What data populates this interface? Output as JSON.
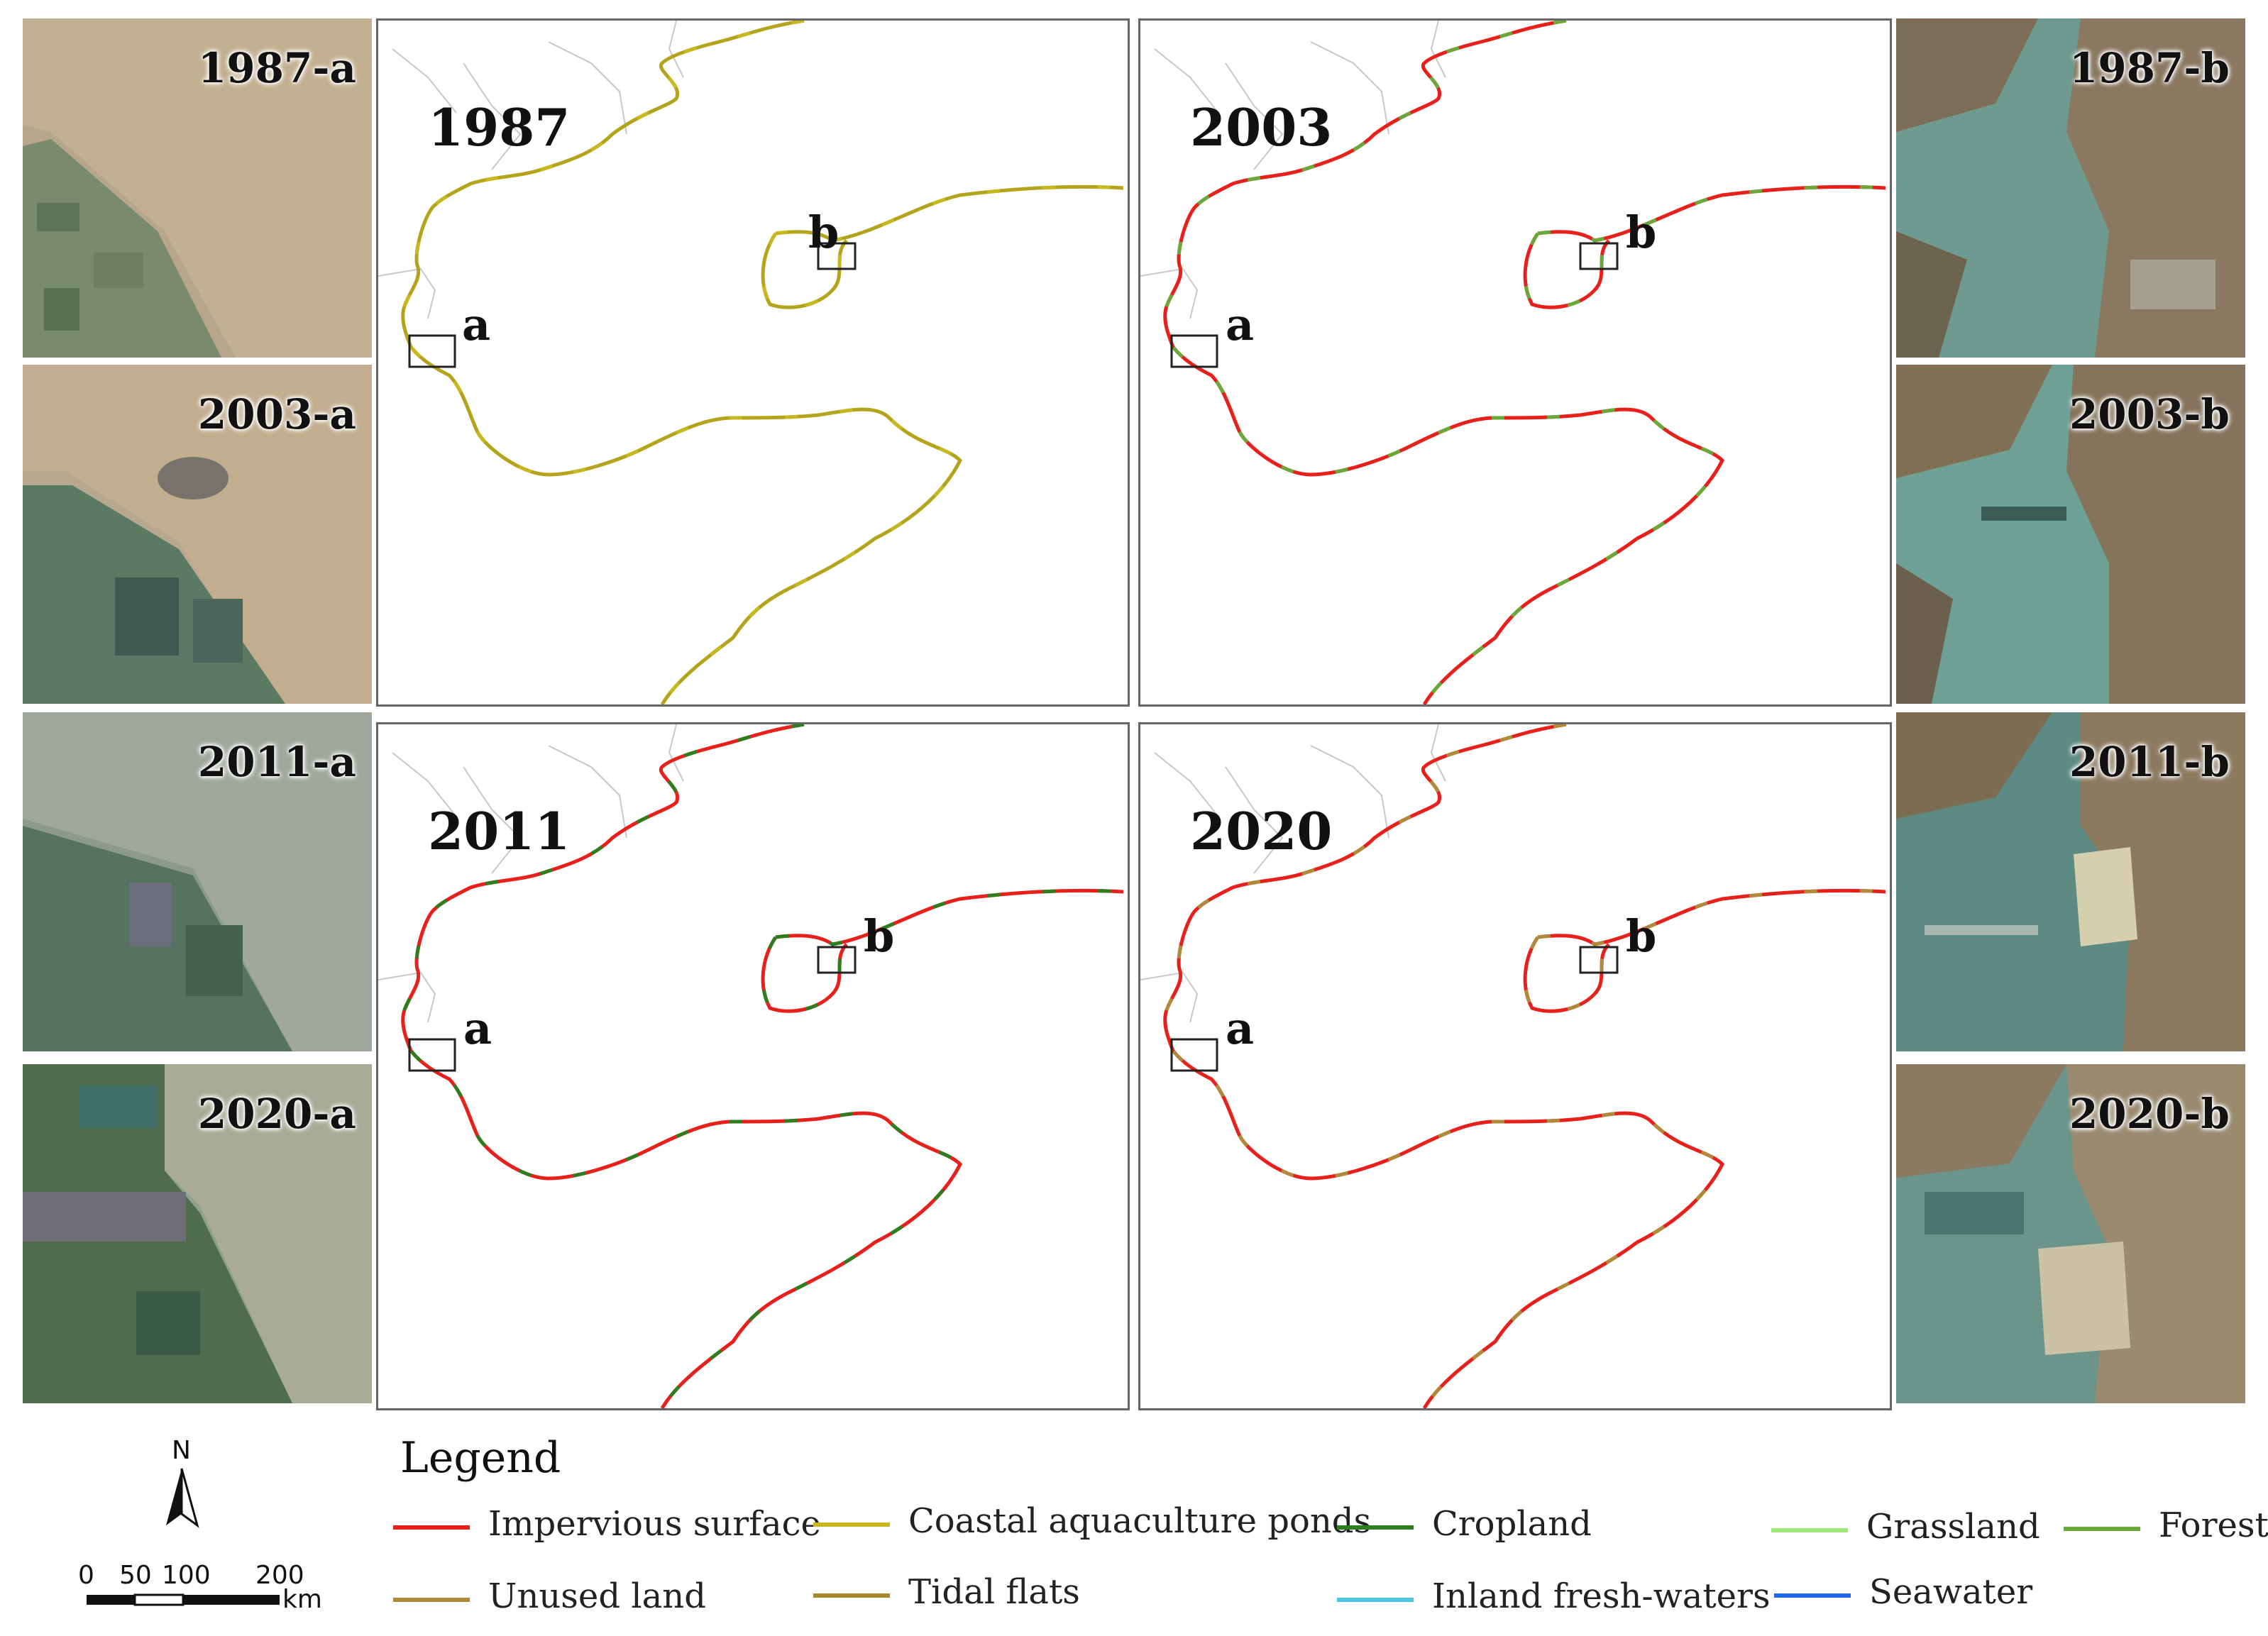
{
  "thumbnails_left": [
    {
      "label": "1987-a"
    },
    {
      "label": "2003-a"
    },
    {
      "label": "2011-a"
    },
    {
      "label": "2020-a"
    }
  ],
  "thumbnails_right": [
    {
      "label": "1987-b"
    },
    {
      "label": "2003-b"
    },
    {
      "label": "2011-b"
    },
    {
      "label": "2020-b"
    }
  ],
  "maps": [
    {
      "year": "1987",
      "box_a": "a",
      "box_b": "b",
      "dominant": "#b4a41c"
    },
    {
      "year": "2003",
      "box_a": "a",
      "box_b": "b",
      "dominant": "#e8201c"
    },
    {
      "year": "2011",
      "box_a": "a",
      "box_b": "b",
      "dominant": "#e8201c"
    },
    {
      "year": "2020",
      "box_a": "a",
      "box_b": "b",
      "dominant": "#e8201c"
    }
  ],
  "legend": {
    "title": "Legend",
    "items": [
      {
        "label": "Impervious surface",
        "color": "#e8201c"
      },
      {
        "label": "Coastal aquaculture ponds",
        "color": "#c8b820"
      },
      {
        "label": "Cropland",
        "color": "#2e7d1e"
      },
      {
        "label": "Grassland",
        "color": "#9ee87a"
      },
      {
        "label": "Forest",
        "color": "#6aa83a"
      },
      {
        "label": "Unused land",
        "color": "#b08a3a"
      },
      {
        "label": "Tidal flats",
        "color": "#a88a2e"
      },
      {
        "label": "Inland fresh-waters",
        "color": "#4ec8e0"
      },
      {
        "label": "Seawater",
        "color": "#1e66e8"
      }
    ]
  },
  "scale_bar": {
    "north": "N",
    "ticks": [
      "0",
      "50",
      "100",
      "200"
    ],
    "unit": "km"
  }
}
